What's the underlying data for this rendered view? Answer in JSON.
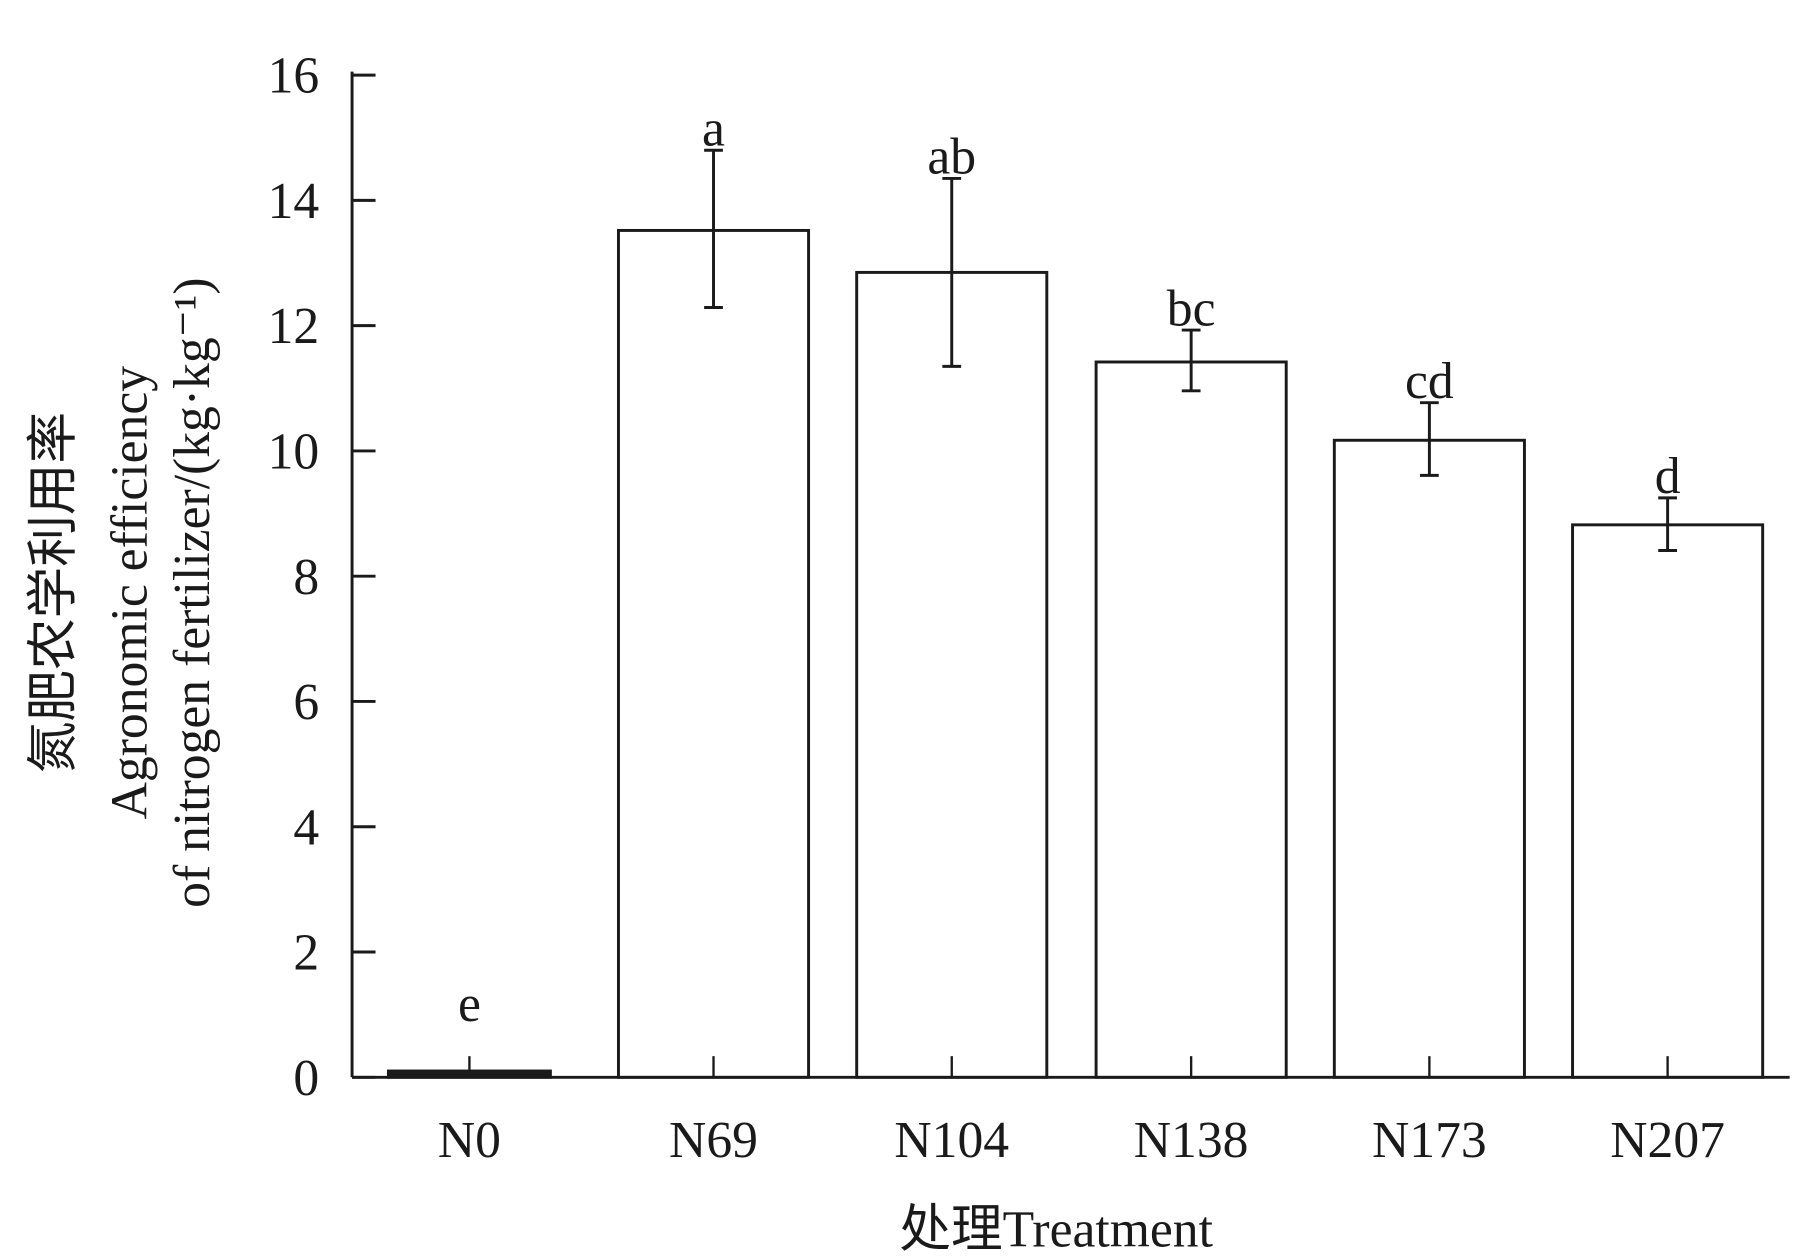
{
  "chart_data": {
    "type": "bar",
    "title": "",
    "xlabel": "处理Treatment",
    "ylabel_lines": [
      "氮肥农学利用率",
      "Agronomic efficiency",
      "of nitrogen fertilizer/(kg·kg⁻¹)"
    ],
    "categories": [
      "N0",
      "N69",
      "N104",
      "N138",
      "N173",
      "N207"
    ],
    "values": [
      0.1,
      13.52,
      12.85,
      11.42,
      10.17,
      8.82
    ],
    "error_low": [
      0.1,
      12.29,
      11.35,
      10.96,
      9.61,
      8.41
    ],
    "error_high": [
      0.1,
      14.8,
      14.35,
      11.93,
      10.77,
      9.25
    ],
    "significance_letters": [
      "e",
      "a",
      "ab",
      "bc",
      "cd",
      "d"
    ],
    "ylim": [
      0,
      16
    ],
    "yticks": [
      0,
      2,
      4,
      6,
      8,
      10,
      12,
      14,
      16
    ],
    "grid": false,
    "colors": {
      "bar_fill": "#ffffff",
      "bar_stroke": "#1a1a1a",
      "n0_fill": "#1a1a1a"
    }
  }
}
